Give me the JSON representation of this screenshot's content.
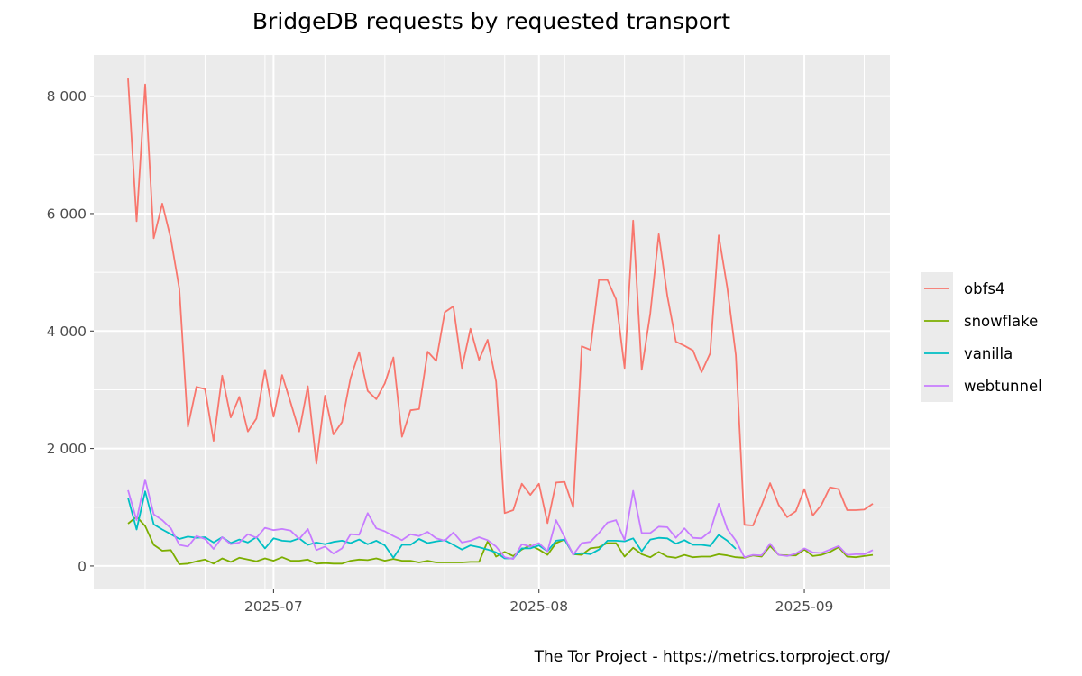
{
  "chart_data": {
    "type": "line",
    "title": "BridgeDB requests by requested transport",
    "caption": "The Tor Project - https://metrics.torproject.org/",
    "xlabel": "",
    "ylabel": "",
    "x_start": "2025-06-14",
    "x_end": "2025-09-07",
    "x_ticks": [
      {
        "date": "2025-07-01",
        "label": "2025-07"
      },
      {
        "date": "2025-08-01",
        "label": "2025-08"
      },
      {
        "date": "2025-09-01",
        "label": "2025-09"
      }
    ],
    "y_ticks": [
      {
        "value": 0,
        "label": "0"
      },
      {
        "value": 2000,
        "label": "2 000"
      },
      {
        "value": 4000,
        "label": "4 000"
      },
      {
        "value": 6000,
        "label": "6 000"
      },
      {
        "value": 8000,
        "label": "8 000"
      }
    ],
    "ylim": [
      -400,
      8700
    ],
    "xlim": [
      "2025-06-10",
      "2025-09-11"
    ],
    "grid": true,
    "legend_position": "right",
    "series": [
      {
        "name": "obfs4",
        "color": "#F8766D",
        "values": [
          8300,
          5870,
          8200,
          5580,
          6170,
          5570,
          4720,
          2370,
          3050,
          3010,
          2130,
          3240,
          2530,
          2880,
          2290,
          2510,
          3340,
          2540,
          3250,
          2780,
          2290,
          3060,
          1740,
          2900,
          2240,
          2450,
          3200,
          3640,
          2980,
          2840,
          3110,
          3550,
          2200,
          2650,
          2670,
          3650,
          3490,
          4320,
          4420,
          3370,
          4040,
          3510,
          3850,
          3140,
          900,
          950,
          1400,
          1210,
          1400,
          730,
          1420,
          1430,
          1000,
          3740,
          3680,
          4870,
          4870,
          4540,
          3370,
          5880,
          3340,
          4300,
          5650,
          4600,
          3820,
          3750,
          3670,
          3300,
          3620,
          5630,
          4740,
          3590,
          700,
          690,
          1030,
          1410,
          1040,
          830,
          930,
          1310,
          860,
          1040,
          1340,
          1310,
          950,
          950,
          960,
          1060
        ]
      },
      {
        "name": "snowflake",
        "color": "#7CAE00",
        "values": [
          720,
          840,
          680,
          360,
          260,
          270,
          30,
          40,
          80,
          110,
          40,
          130,
          70,
          140,
          110,
          80,
          130,
          90,
          150,
          90,
          90,
          110,
          40,
          50,
          40,
          40,
          90,
          110,
          100,
          130,
          90,
          120,
          90,
          90,
          60,
          90,
          60,
          60,
          60,
          60,
          70,
          70,
          420,
          160,
          240,
          170,
          280,
          350,
          280,
          190,
          390,
          450,
          200,
          190,
          300,
          320,
          390,
          390,
          160,
          310,
          200,
          150,
          240,
          160,
          140,
          190,
          150,
          160,
          160,
          200,
          180,
          150,
          140,
          180,
          160,
          340,
          190,
          180,
          180,
          280,
          170,
          190,
          240,
          320,
          160,
          150,
          170,
          190
        ]
      },
      {
        "name": "vanilla",
        "color": "#00BFC4",
        "values": [
          1160,
          620,
          1270,
          710,
          620,
          540,
          460,
          500,
          480,
          490,
          400,
          490,
          390,
          450,
          400,
          490,
          300,
          470,
          430,
          420,
          470,
          360,
          400,
          370,
          410,
          430,
          390,
          450,
          370,
          430,
          350,
          140,
          360,
          360,
          460,
          390,
          420,
          440,
          360,
          280,
          350,
          320,
          280,
          230,
          130,
          130,
          300,
          300,
          350,
          250,
          430,
          450,
          200,
          220,
          200,
          280,
          430,
          430,
          420,
          470,
          250,
          450,
          480,
          470,
          380,
          440,
          360,
          360,
          340,
          530,
          430,
          290,
          null,
          null,
          null,
          null,
          null,
          null,
          null,
          null,
          null,
          null,
          null,
          null,
          null,
          null,
          null,
          null
        ]
      },
      {
        "name": "webtunnel",
        "color": "#C77CFF",
        "values": [
          1290,
          780,
          1470,
          880,
          780,
          640,
          360,
          330,
          510,
          460,
          290,
          490,
          370,
          400,
          540,
          480,
          650,
          610,
          630,
          600,
          460,
          630,
          270,
          330,
          210,
          300,
          540,
          530,
          900,
          640,
          590,
          510,
          440,
          540,
          510,
          580,
          470,
          430,
          570,
          400,
          430,
          490,
          440,
          330,
          150,
          120,
          370,
          330,
          390,
          250,
          780,
          490,
          190,
          390,
          410,
          560,
          740,
          780,
          440,
          1280,
          560,
          560,
          670,
          660,
          480,
          640,
          480,
          470,
          590,
          1060,
          630,
          430,
          150,
          190,
          180,
          380,
          190,
          170,
          210,
          300,
          230,
          220,
          280,
          340,
          190,
          200,
          200,
          270
        ]
      }
    ]
  }
}
